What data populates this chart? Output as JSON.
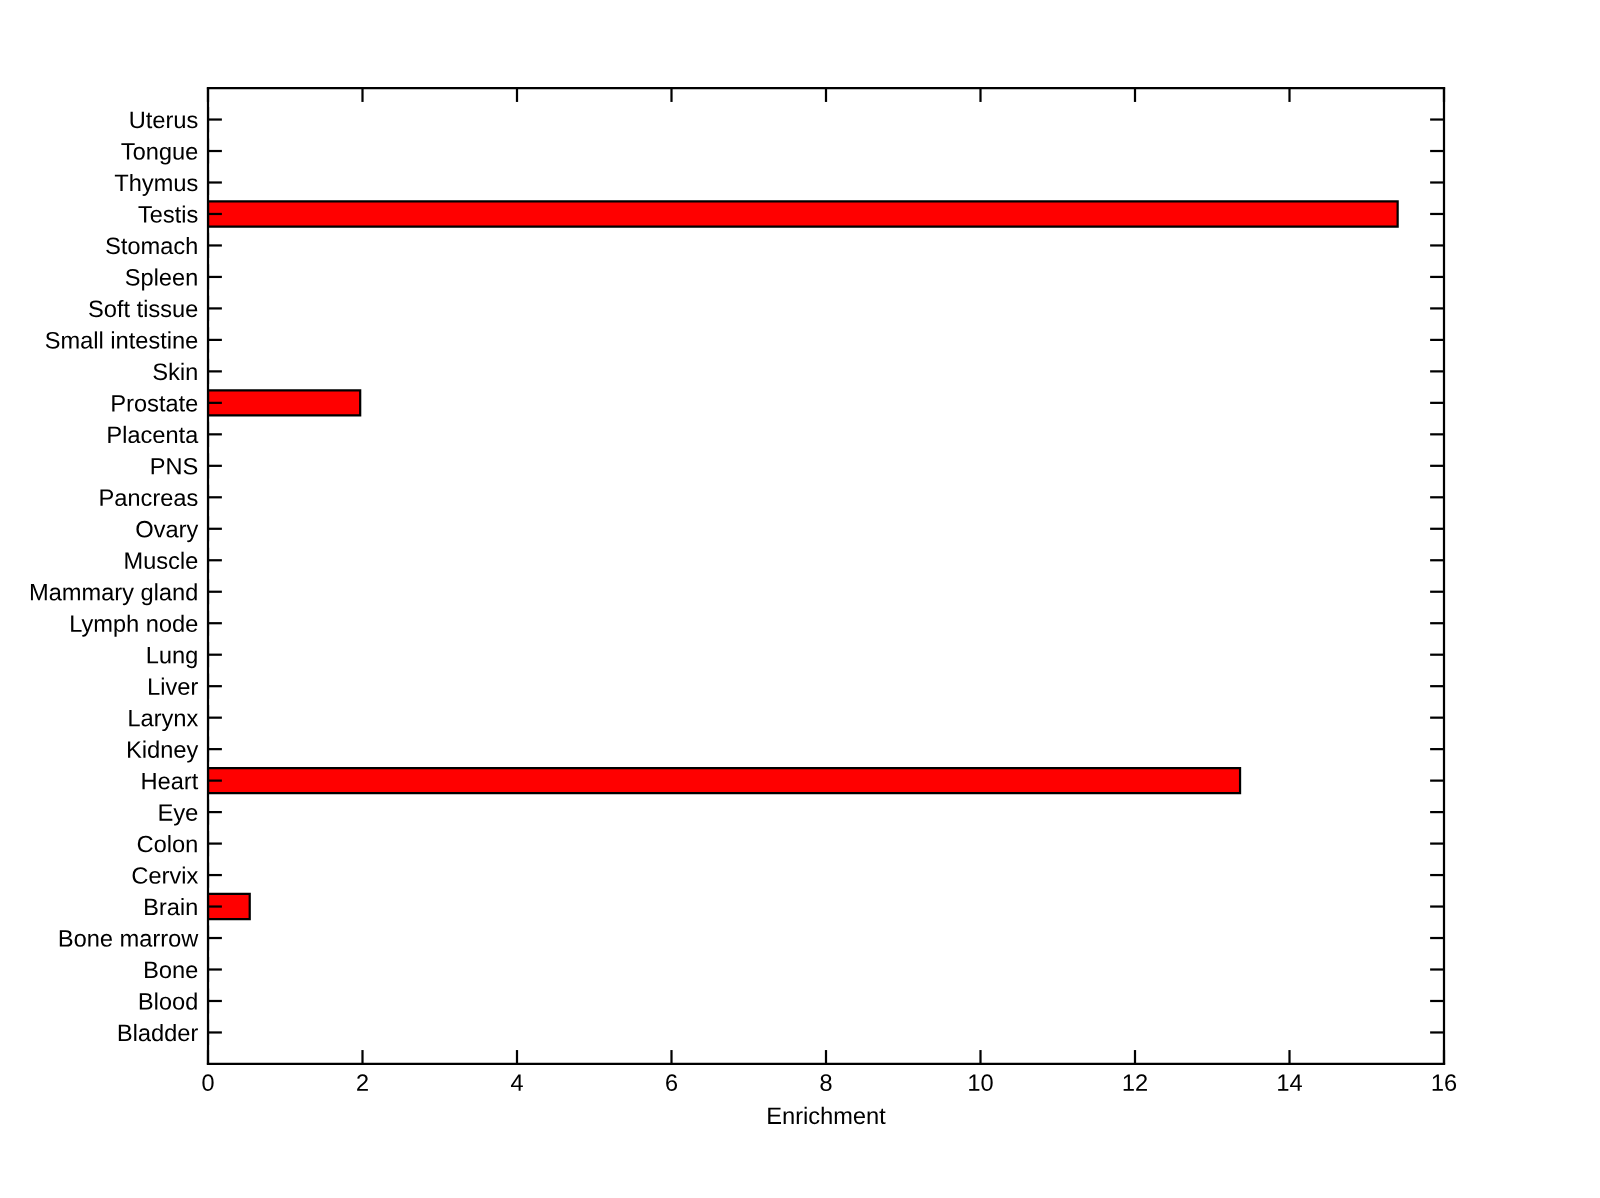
{
  "chart_data": {
    "type": "bar",
    "orientation": "horizontal",
    "xlabel": "Enrichment",
    "categories": [
      "Uterus",
      "Tongue",
      "Thymus",
      "Testis",
      "Stomach",
      "Spleen",
      "Soft tissue",
      "Small intestine",
      "Skin",
      "Prostate",
      "Placenta",
      "PNS",
      "Pancreas",
      "Ovary",
      "Muscle",
      "Mammary gland",
      "Lymph node",
      "Lung",
      "Liver",
      "Larynx",
      "Kidney",
      "Heart",
      "Eye",
      "Colon",
      "Cervix",
      "Brain",
      "Bone marrow",
      "Bone",
      "Blood",
      "Bladder"
    ],
    "values": [
      0,
      0,
      0,
      15.4,
      0,
      0,
      0,
      0,
      0,
      1.97,
      0,
      0,
      0,
      0,
      0,
      0,
      0,
      0,
      0,
      0,
      0,
      13.36,
      0,
      0,
      0,
      0.54,
      0,
      0,
      0,
      0
    ],
    "color": "#ff0000",
    "xlim": [
      0,
      16
    ],
    "xticks": [
      0,
      2,
      4,
      6,
      8,
      10,
      12,
      14,
      16
    ],
    "grid": false,
    "legend": false
  }
}
